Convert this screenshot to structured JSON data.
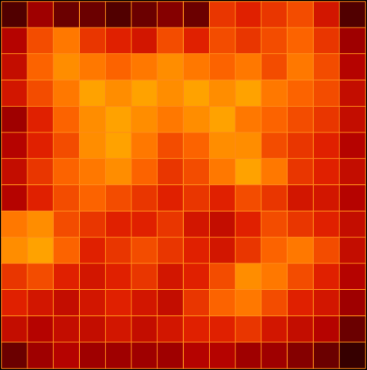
{
  "chart_data": {
    "type": "heatmap",
    "cells": [
      [
        0.15,
        0.3,
        0.2,
        0.2,
        0.15,
        0.2,
        0.25,
        0.2,
        0.55,
        0.5,
        0.55,
        0.6,
        0.45,
        0.15
      ],
      [
        0.35,
        0.6,
        0.7,
        0.55,
        0.5,
        0.45,
        0.6,
        0.5,
        0.6,
        0.55,
        0.6,
        0.65,
        0.55,
        0.3
      ],
      [
        0.4,
        0.65,
        0.75,
        0.7,
        0.65,
        0.7,
        0.75,
        0.7,
        0.65,
        0.7,
        0.6,
        0.7,
        0.6,
        0.35
      ],
      [
        0.45,
        0.6,
        0.7,
        0.8,
        0.75,
        0.8,
        0.75,
        0.8,
        0.75,
        0.8,
        0.7,
        0.65,
        0.6,
        0.4
      ],
      [
        0.3,
        0.5,
        0.65,
        0.75,
        0.8,
        0.75,
        0.7,
        0.75,
        0.8,
        0.7,
        0.65,
        0.6,
        0.55,
        0.4
      ],
      [
        0.35,
        0.5,
        0.6,
        0.75,
        0.8,
        0.7,
        0.6,
        0.65,
        0.75,
        0.75,
        0.6,
        0.55,
        0.5,
        0.35
      ],
      [
        0.4,
        0.55,
        0.65,
        0.7,
        0.75,
        0.65,
        0.55,
        0.6,
        0.7,
        0.8,
        0.7,
        0.55,
        0.5,
        0.4
      ],
      [
        0.35,
        0.5,
        0.6,
        0.65,
        0.6,
        0.55,
        0.5,
        0.55,
        0.5,
        0.6,
        0.55,
        0.45,
        0.45,
        0.35
      ],
      [
        0.7,
        0.75,
        0.6,
        0.55,
        0.5,
        0.5,
        0.55,
        0.45,
        0.4,
        0.5,
        0.6,
        0.55,
        0.5,
        0.4
      ],
      [
        0.75,
        0.8,
        0.65,
        0.5,
        0.55,
        0.6,
        0.55,
        0.5,
        0.45,
        0.55,
        0.65,
        0.7,
        0.6,
        0.4
      ],
      [
        0.55,
        0.6,
        0.5,
        0.45,
        0.5,
        0.55,
        0.45,
        0.5,
        0.6,
        0.75,
        0.7,
        0.6,
        0.5,
        0.35
      ],
      [
        0.5,
        0.45,
        0.4,
        0.45,
        0.5,
        0.45,
        0.4,
        0.55,
        0.65,
        0.7,
        0.6,
        0.5,
        0.45,
        0.3
      ],
      [
        0.4,
        0.35,
        0.4,
        0.4,
        0.45,
        0.4,
        0.45,
        0.5,
        0.5,
        0.55,
        0.45,
        0.4,
        0.35,
        0.2
      ],
      [
        0.2,
        0.3,
        0.35,
        0.3,
        0.3,
        0.3,
        0.3,
        0.35,
        0.35,
        0.3,
        0.3,
        0.25,
        0.2,
        0.1
      ]
    ],
    "zlim": [
      0,
      1
    ],
    "tick_labels": false
  }
}
